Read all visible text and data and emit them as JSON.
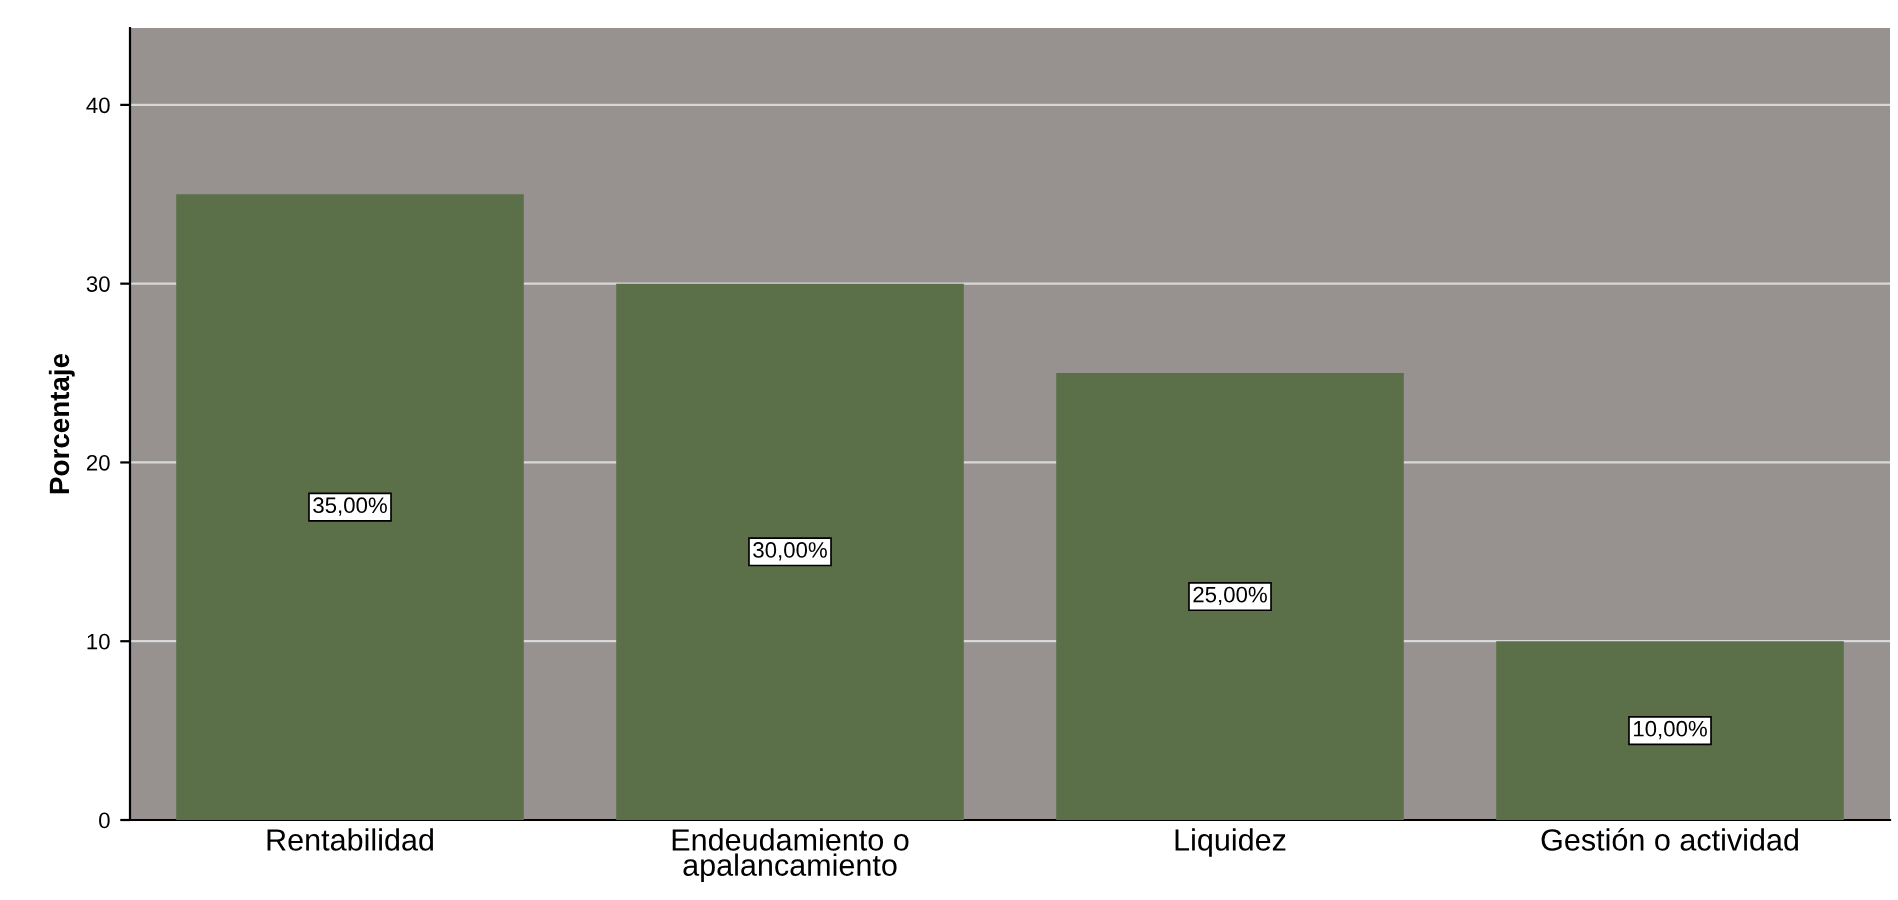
{
  "chart_data": {
    "type": "bar",
    "ylabel": "Porcentaje",
    "categories": [
      "Rentabilidad",
      "Endeudamiento o\napalancamiento",
      "Liquidez",
      "Gestión o actividad"
    ],
    "values": [
      35,
      30,
      25,
      10
    ],
    "color": "#5b7049",
    "value_labels": [
      "35,00%",
      "30,00%",
      "25,00%",
      "10,00%"
    ],
    "ylim": [
      0,
      44.3
    ],
    "yticks": [
      0,
      10,
      20,
      30,
      40
    ],
    "grid": "y",
    "legend": false
  }
}
